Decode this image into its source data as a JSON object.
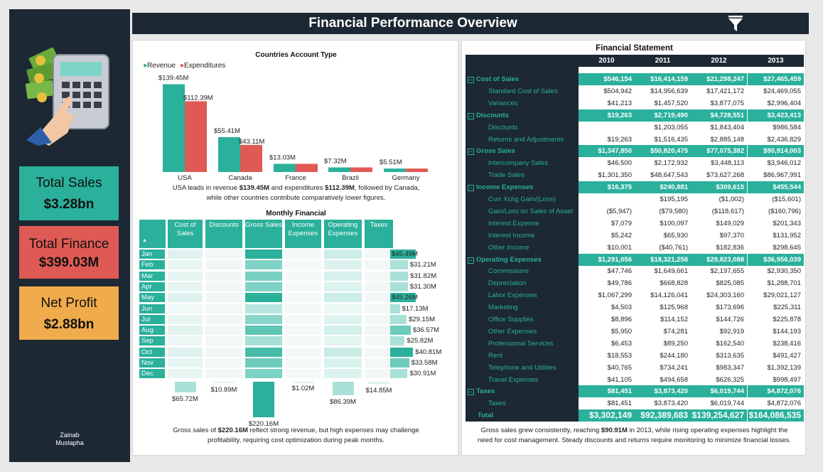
{
  "header": {
    "title": "Financial Performance Overview"
  },
  "kpis": [
    {
      "title": "Total Sales",
      "value": "$3.28bn",
      "color": "#2ab09b"
    },
    {
      "title": "Total Finance",
      "value": "$399.03M",
      "color": "#e05a55"
    },
    {
      "title": "Net Profit",
      "value": "$2.88bn",
      "color": "#f0ac4c"
    }
  ],
  "author": {
    "first": "Zainab",
    "last": "Mustapha"
  },
  "chart_data": [
    {
      "type": "bar",
      "title": "Countries Account Type",
      "categories": [
        "USA",
        "Canada",
        "France",
        "Brazil",
        "Germany"
      ],
      "series": [
        {
          "name": "Revenue",
          "color": "#2ab09b",
          "values": [
            139.45,
            55.41,
            13.03,
            7.32,
            5.51
          ],
          "labels": [
            "$139.45M",
            "$55.41M",
            "$13.03M",
            "$7.32M",
            "$5.51M"
          ]
        },
        {
          "name": "Expenditures",
          "color": "#e05a55",
          "values": [
            112.39,
            43.11,
            13.03,
            7.32,
            5.51
          ],
          "labels": [
            "$112.39M",
            "$43.11M",
            "",
            "",
            ""
          ]
        }
      ],
      "ylim": [
        0,
        140
      ]
    },
    {
      "type": "heatmap",
      "title": "Monthly Financial",
      "columns": [
        "Cost of Sales",
        "Discounts",
        "Gross Sales",
        "Income Expenses",
        "Operating Expenses",
        "Taxes"
      ],
      "months": [
        "Jan",
        "Feb",
        "Mar",
        "Apr",
        "May",
        "Jun",
        "Jul",
        "Aug",
        "Sep",
        "Oct",
        "Nov",
        "Dec"
      ],
      "month_values": [
        45.49,
        31.21,
        31.82,
        31.3,
        45.26,
        17.13,
        29.15,
        36.57,
        25.82,
        40.81,
        33.58,
        30.91
      ],
      "month_labels": [
        "$45.49M",
        "$31.21M",
        "$31.82M",
        "$31.30M",
        "$45.26M",
        "$17.13M",
        "$29.15M",
        "$36.57M",
        "$25.82M",
        "$40.81M",
        "$33.58M",
        "$30.91M"
      ],
      "column_values": [
        65.72,
        10.89,
        220.16,
        1.02,
        86.39,
        14.85
      ],
      "column_labels": [
        "$65.72M",
        "$10.89M",
        "$220.16M",
        "$1.02M",
        "$86.39M",
        "$14.85M"
      ]
    }
  ],
  "countries_caption": {
    "pre": "USA leads in revenue ",
    "b1": "$139.45M",
    "mid": " and expenditures ",
    "b2": "$112.39M",
    "post": ", followed by Canada,",
    "line2": "while other countries contribute comparatively lower figures."
  },
  "monthly_caption": {
    "pre": "Gross sales of ",
    "b1": "$220.16M",
    "post": " reflect strong revenue, but high expenses may challenge",
    "line2": "profitability, requiring cost optimization during peak months."
  },
  "statement": {
    "title": "Financial Statement",
    "years": [
      "2010",
      "2011",
      "2012",
      "2013"
    ],
    "rows": [
      {
        "label": "Cost of Sales",
        "type": "cat",
        "values": [
          "$546,154",
          "$16,414,159",
          "$21,298,247",
          "$27,465,459"
        ]
      },
      {
        "label": "Standard Cost of Sales",
        "type": "sub",
        "values": [
          "$504,942",
          "$14,956,639",
          "$17,421,172",
          "$24,469,055"
        ]
      },
      {
        "label": "Variances",
        "type": "sub",
        "values": [
          "$41,213",
          "$1,457,520",
          "$3,877,075",
          "$2,996,404"
        ]
      },
      {
        "label": "Discounts",
        "type": "cat",
        "values": [
          "$19,263",
          "$2,719,490",
          "$4,728,551",
          "$3,423,413"
        ]
      },
      {
        "label": "Discounts",
        "type": "sub",
        "values": [
          "",
          "$1,203,055",
          "$1,843,404",
          "$986,584"
        ]
      },
      {
        "label": "Returns and Adjustments",
        "type": "sub",
        "values": [
          "$19,263",
          "$1,516,435",
          "$2,885,148",
          "$2,436,829"
        ]
      },
      {
        "label": "Gross Sales",
        "type": "cat",
        "values": [
          "$1,347,850",
          "$50,820,475",
          "$77,075,382",
          "$90,914,003"
        ]
      },
      {
        "label": "Intercompany Sales",
        "type": "sub",
        "values": [
          "$46,500",
          "$2,172,932",
          "$3,448,113",
          "$3,946,012"
        ]
      },
      {
        "label": "Trade Sales",
        "type": "sub",
        "values": [
          "$1,301,350",
          "$48,647,543",
          "$73,627,268",
          "$86,967,991"
        ]
      },
      {
        "label": "Income Expenses",
        "type": "cat",
        "values": [
          "$16,375",
          "$240,881",
          "$309,615",
          "$455,544"
        ]
      },
      {
        "label": "Curr Xchg Gain/(Loss)",
        "type": "sub",
        "values": [
          "",
          "$195,195",
          "($1,002)",
          "($15,601)"
        ]
      },
      {
        "label": "Gain/Loss on Sales of Asset",
        "type": "sub",
        "values": [
          "($5,947)",
          "($79,580)",
          "($118,617)",
          "($160,796)"
        ]
      },
      {
        "label": "Interest Expense",
        "type": "sub",
        "values": [
          "$7,079",
          "$100,097",
          "$149,029",
          "$201,343"
        ]
      },
      {
        "label": "Interest Income",
        "type": "sub",
        "values": [
          "$5,242",
          "$65,930",
          "$97,370",
          "$131,952"
        ]
      },
      {
        "label": "Other Income",
        "type": "sub",
        "values": [
          "$10,001",
          "($40,761)",
          "$182,836",
          "$298,645"
        ]
      },
      {
        "label": "Operating Expenses",
        "type": "cat",
        "values": [
          "$1,291,056",
          "$18,321,258",
          "$29,823,088",
          "$36,956,039"
        ]
      },
      {
        "label": "Commissions",
        "type": "sub",
        "values": [
          "$47,746",
          "$1,649,661",
          "$2,197,655",
          "$2,930,350"
        ]
      },
      {
        "label": "Depreciation",
        "type": "sub",
        "values": [
          "$49,786",
          "$668,828",
          "$825,085",
          "$1,288,701"
        ]
      },
      {
        "label": "Labor Expenses",
        "type": "sub",
        "values": [
          "$1,067,299",
          "$14,126,041",
          "$24,303,160",
          "$29,021,127"
        ]
      },
      {
        "label": "Marketing",
        "type": "sub",
        "values": [
          "$4,503",
          "$125,968",
          "$173,696",
          "$225,311"
        ]
      },
      {
        "label": "Office Supplies",
        "type": "sub",
        "values": [
          "$8,896",
          "$114,152",
          "$144,726",
          "$225,878"
        ]
      },
      {
        "label": "Other Expenses",
        "type": "sub",
        "values": [
          "$5,950",
          "$74,281",
          "$92,919",
          "$144,193"
        ]
      },
      {
        "label": "Professional Services",
        "type": "sub",
        "values": [
          "$6,453",
          "$89,250",
          "$162,540",
          "$238,416"
        ]
      },
      {
        "label": "Rent",
        "type": "sub",
        "values": [
          "$18,553",
          "$244,180",
          "$313,635",
          "$491,427"
        ]
      },
      {
        "label": "Telephone and Utilities",
        "type": "sub",
        "values": [
          "$40,765",
          "$734,241",
          "$983,347",
          "$1,392,139"
        ]
      },
      {
        "label": "Travel Expenses",
        "type": "sub",
        "values": [
          "$41,105",
          "$494,658",
          "$626,325",
          "$998,497"
        ]
      },
      {
        "label": "Taxes",
        "type": "cat",
        "values": [
          "$81,451",
          "$3,873,420",
          "$6,019,744",
          "$4,872,076"
        ]
      },
      {
        "label": "Taxes",
        "type": "sub",
        "values": [
          "$81,451",
          "$3,873,420",
          "$6,019,744",
          "$4,872,076"
        ]
      },
      {
        "label": "Total",
        "type": "tot",
        "values": [
          "$3,302,149",
          "$92,389,683",
          "$139,254,627",
          "$164,086,535"
        ]
      }
    ]
  },
  "statement_caption": {
    "pre": "Gross sales grew consistently, reaching ",
    "b1": "$90.91M",
    "post": " in 2013, while rising operating expenses highlight the",
    "line2": "need for cost management. Steady discounts and returns require monitoring to minimize financial losses."
  },
  "icons": {
    "filter": "filter-icon",
    "logo": "finance-calculator-icon",
    "collapse": "collapse-icon",
    "sort": "sort-arrow-icon"
  }
}
